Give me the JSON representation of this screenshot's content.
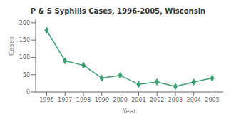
{
  "chart_data": {
    "type": "line",
    "title": "P & S Syphilis Cases, 1996-2005, Wisconsin",
    "xlabel": "Year",
    "ylabel": "Cases",
    "x": [
      1996,
      1997,
      1998,
      1999,
      2000,
      2001,
      2002,
      2003,
      2004,
      2005
    ],
    "values": [
      178,
      90,
      77,
      40,
      48,
      22,
      29,
      16,
      29,
      40
    ],
    "color": "#3a9e70",
    "marker": "diamond",
    "xlim": [
      1995.4,
      2005.6
    ],
    "xticks": [
      1996,
      1997,
      1998,
      1999,
      2000,
      2001,
      2002,
      2003,
      2004,
      2005
    ],
    "ylim": [
      0,
      210
    ],
    "yticks": [
      0,
      50,
      100,
      150,
      200
    ],
    "grid": false
  }
}
